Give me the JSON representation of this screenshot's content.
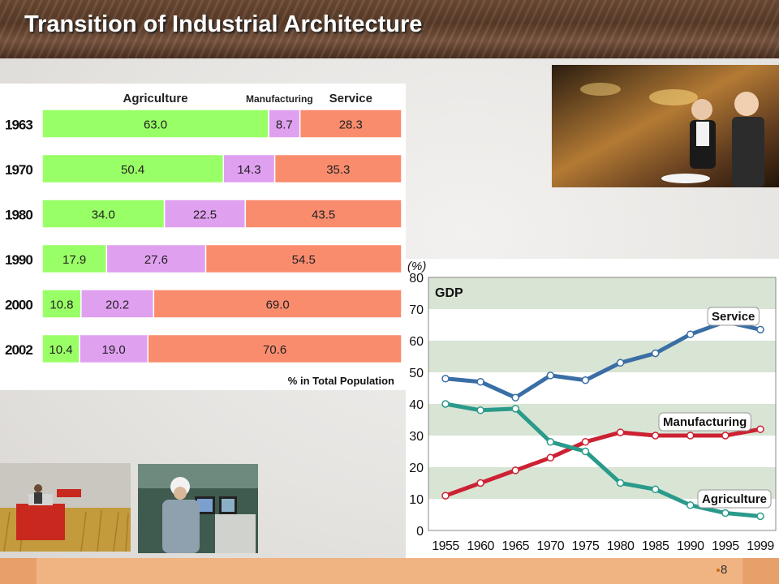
{
  "slide": {
    "title": "Transition of Industrial Architecture",
    "page_number": "8"
  },
  "colors": {
    "agriculture": "#99ff66",
    "manufacturing": "#e0a0f0",
    "service": "#fa8c6e",
    "service_line": "#3a6ea5",
    "agriculture_line": "#2a9a8a",
    "manufacturing_line": "#cc2233"
  },
  "photos": {
    "restaurant": "restaurant-photo",
    "harvest": "rice-harvest-photo",
    "factory": "factory-worker-photo"
  },
  "chart_data": [
    {
      "type": "bar",
      "stacked": true,
      "orientation": "horizontal",
      "title": "",
      "categories": [
        "1963",
        "1970",
        "1980",
        "1990",
        "2000",
        "2002"
      ],
      "series": [
        {
          "name": "Agriculture",
          "values": [
            63.0,
            50.4,
            34.0,
            17.9,
            10.8,
            10.4
          ]
        },
        {
          "name": "Manufacturing",
          "values": [
            8.7,
            14.3,
            22.5,
            27.6,
            20.2,
            19.0
          ]
        },
        {
          "name": "Service",
          "values": [
            28.3,
            35.3,
            43.5,
            54.5,
            69.0,
            70.6
          ]
        }
      ],
      "value_labels": {
        "Agriculture": [
          "63.0",
          "50.4",
          "34.0",
          "17.9",
          "10.8",
          "10.4"
        ],
        "Manufacturing": [
          "8.7",
          "14.3",
          "22.5",
          "27.6",
          "20.2",
          "19.0"
        ],
        "Service": [
          "28.3",
          "35.3",
          "43.5",
          "54.5",
          "69.0",
          "70.6"
        ]
      },
      "xlabel": "% in Total Population",
      "xlim": [
        0,
        100
      ]
    },
    {
      "type": "line",
      "title": "GDP",
      "unit_label": "(%)",
      "x": [
        "1955",
        "1960",
        "1965",
        "1970",
        "1975",
        "1980",
        "1985",
        "1990",
        "1995",
        "1999"
      ],
      "series": [
        {
          "name": "Service",
          "values": [
            48,
            47,
            42,
            49,
            47.5,
            53,
            56,
            62,
            66,
            63.5
          ]
        },
        {
          "name": "Manufacturing",
          "values": [
            11,
            15,
            19,
            23,
            28,
            31,
            30,
            30,
            30,
            32
          ]
        },
        {
          "name": "Agriculture",
          "values": [
            40,
            38,
            38.5,
            28,
            25,
            15,
            13,
            8,
            5.5,
            4.5
          ]
        }
      ],
      "ylim": [
        0,
        80
      ],
      "yticks": [
        "0",
        "10",
        "20",
        "30",
        "40",
        "50",
        "60",
        "70",
        "80"
      ],
      "banded_background": true,
      "legend": "inline-labels"
    }
  ]
}
